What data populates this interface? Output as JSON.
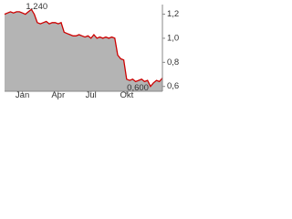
{
  "chart_data": {
    "type": "line",
    "categories": [
      null,
      null,
      null,
      null,
      null,
      null,
      "Jan",
      null,
      null,
      null,
      null,
      null,
      null,
      null,
      null,
      null,
      null,
      null,
      "Apr",
      null,
      null,
      null,
      null,
      null,
      null,
      null,
      null,
      null,
      null,
      "Jul",
      null,
      null,
      null,
      null,
      null,
      null,
      null,
      null,
      null,
      null,
      null,
      "Okt",
      null,
      null,
      null,
      null,
      null,
      null,
      null,
      null,
      null,
      null,
      null,
      null
    ],
    "series": [
      {
        "color": "#cc0000",
        "fill": "#b4b4b4",
        "values": [
          1.2,
          1.21,
          1.22,
          1.21,
          1.22,
          1.22,
          1.21,
          1.2,
          1.22,
          1.24,
          1.2,
          1.13,
          1.12,
          1.13,
          1.14,
          1.12,
          1.13,
          1.13,
          1.12,
          1.13,
          1.05,
          1.04,
          1.03,
          1.02,
          1.02,
          1.03,
          1.02,
          1.01,
          1.02,
          1.0,
          1.03,
          1.0,
          1.01,
          1.0,
          1.01,
          1.0,
          1.01,
          1.0,
          0.86,
          0.83,
          0.82,
          0.66,
          0.65,
          0.66,
          0.64,
          0.65,
          0.66,
          0.64,
          0.65,
          0.6,
          0.63,
          0.65,
          0.64,
          0.67
        ]
      }
    ],
    "annotations": [
      {
        "value": 1.24,
        "label": "1,240"
      },
      {
        "value": 0.6,
        "label": "0,600"
      }
    ],
    "ylim": [
      0.56,
      1.28
    ],
    "yticks": [
      {
        "value": 0.6,
        "label": "0,6"
      },
      {
        "value": 0.8,
        "label": "0,8"
      },
      {
        "value": 1.0,
        "label": "1,0"
      },
      {
        "value": 1.2,
        "label": "1,2"
      }
    ]
  }
}
